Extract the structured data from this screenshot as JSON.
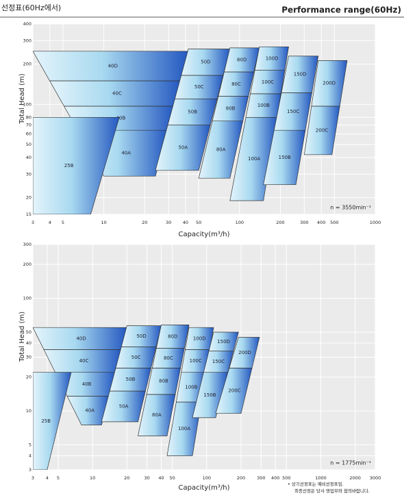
{
  "header": {
    "left": "선정표(60Hz에서)",
    "right": "Performance range(60Hz)"
  },
  "footnote": [
    "• 상기선정표는 예비선정표임.",
    "최종선정은 당사 영업부와 협의바랍니다."
  ],
  "chart_data": [
    {
      "type": "range",
      "xlabel": "Capacity(m³/h)",
      "ylabel": "Total Head (m)",
      "annotation": "n = 3550min⁻¹",
      "log": true,
      "grid": true,
      "xlim": [
        3,
        1000
      ],
      "ylim": [
        15,
        400
      ],
      "xticks": [
        3,
        4,
        5,
        10,
        20,
        30,
        40,
        50,
        100,
        200,
        300,
        400,
        500,
        1000
      ],
      "yticks": [
        15,
        20,
        30,
        40,
        50,
        60,
        70,
        80,
        100,
        200,
        300,
        400
      ],
      "groups": [
        {
          "labels": [
            "40A",
            "40B",
            "40C",
            "40D"
          ],
          "heads": [
            29,
            64,
            97,
            150,
            250
          ],
          "x_top": [
            3,
            42
          ],
          "x_bottom": [
            10,
            24
          ]
        },
        {
          "labels": [
            "50A",
            "50B",
            "50C",
            "50D"
          ],
          "heads": [
            32,
            70,
            110,
            165,
            260
          ],
          "x_top": [
            42,
            85
          ],
          "x_bottom": [
            24,
            50
          ]
        },
        {
          "labels": [
            "80A",
            "80B",
            "80C",
            "80D"
          ],
          "heads": [
            28,
            75,
            115,
            175,
            265
          ],
          "x_top": [
            85,
            140
          ],
          "x_bottom": [
            50,
            85
          ]
        },
        {
          "labels": [
            "100A",
            "100B",
            "100C",
            "100D"
          ],
          "heads": [
            19,
            80,
            120,
            180,
            270
          ],
          "x_top": [
            140,
            230
          ],
          "x_bottom": [
            85,
            150
          ]
        },
        {
          "labels": [
            "150B",
            "150C",
            "150D"
          ],
          "heads": [
            25,
            64,
            122,
            230
          ],
          "x_top": [
            230,
            380
          ],
          "x_bottom": [
            150,
            260
          ]
        },
        {
          "labels": [
            "200C",
            "200D"
          ],
          "heads": [
            42,
            97,
            213
          ],
          "x_top": [
            380,
            620
          ],
          "x_bottom": [
            300,
            480
          ]
        },
        {
          "labels": [
            "25B"
          ],
          "heads": [
            15,
            80
          ],
          "x_top": [
            3,
            13
          ],
          "x_bottom": [
            3,
            8
          ]
        }
      ]
    },
    {
      "type": "range",
      "xlabel": "Capacity(m³/h)",
      "ylabel": "Total Head (m)",
      "annotation": "n = 1775min⁻¹",
      "log": true,
      "grid": true,
      "xlim": [
        3,
        3000
      ],
      "ylim": [
        3,
        300
      ],
      "xticks": [
        3,
        4,
        5,
        10,
        20,
        30,
        40,
        50,
        100,
        200,
        300,
        400,
        500,
        1000,
        2000,
        3000
      ],
      "yticks": [
        3,
        4,
        5,
        10,
        20,
        30,
        40,
        50,
        100,
        200,
        300
      ],
      "groups": [
        {
          "labels": [
            "40A",
            "40B",
            "40C",
            "40D"
          ],
          "heads": [
            7.5,
            13.5,
            22,
            35,
            55
          ],
          "x_top": [
            3,
            20
          ],
          "x_bottom": [
            8,
            12
          ]
        },
        {
          "labels": [
            "50A",
            "50B",
            "50C",
            "50D"
          ],
          "heads": [
            8,
            15,
            24,
            37,
            57
          ],
          "x_top": [
            20,
            40
          ],
          "x_bottom": [
            12,
            25
          ]
        },
        {
          "labels": [
            "80A",
            "80B",
            "80C",
            "80D"
          ],
          "heads": [
            6,
            14,
            24,
            36,
            58
          ],
          "x_top": [
            40,
            70
          ],
          "x_bottom": [
            25,
            45
          ]
        },
        {
          "labels": [
            "100A",
            "100B",
            "100C",
            "100D"
          ],
          "heads": [
            4,
            12,
            22,
            35,
            55
          ],
          "x_top": [
            70,
            115
          ],
          "x_bottom": [
            45,
            75
          ]
        },
        {
          "labels": [
            "150B",
            "150C",
            "150D"
          ],
          "heads": [
            8.7,
            22,
            34,
            50
          ],
          "x_top": [
            115,
            190
          ],
          "x_bottom": [
            75,
            120
          ]
        },
        {
          "labels": [
            "200C",
            "200D"
          ],
          "heads": [
            9.5,
            24,
            45
          ],
          "x_top": [
            190,
            290
          ],
          "x_bottom": [
            120,
            200
          ]
        },
        {
          "labels": [
            "25B"
          ],
          "heads": [
            3,
            22
          ],
          "x_top": [
            3,
            6.5
          ],
          "x_bottom": [
            3,
            4
          ]
        }
      ]
    }
  ]
}
